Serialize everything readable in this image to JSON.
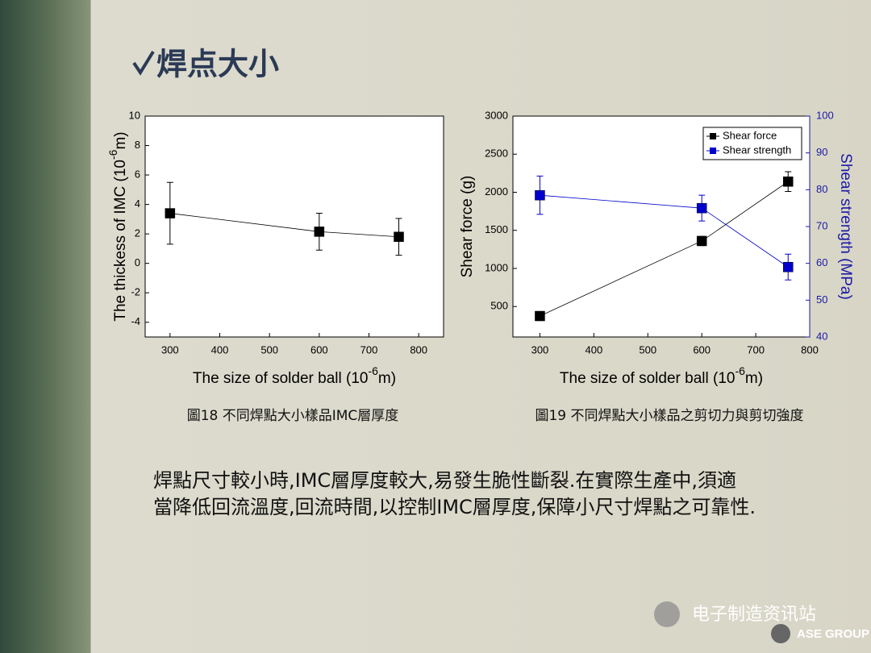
{
  "slide": {
    "title": "焊点大小",
    "captions": [
      "圖18 不同焊點大小樣品IMC層厚度",
      "圖19 不同焊點大小樣品之剪切力與剪切強度"
    ],
    "body": [
      "焊點尺寸較小時,IMC層厚度較大,易發生脆性斷裂.在實際生產中,須適",
      "當降低回流溫度,回流時間,以控制IMC層厚度,保障小尺寸焊點之可靠性."
    ],
    "watermark": "电子制造资讯站",
    "logo": "ASE GROUP"
  },
  "chart_data": [
    {
      "type": "line",
      "xlabel": [
        "The size of solder ball (10",
        "-6",
        "m)"
      ],
      "ylabel": [
        "The thickess of IMC (10",
        "-6",
        "m)"
      ],
      "x": [
        300,
        600,
        760
      ],
      "xlim": [
        250,
        850
      ],
      "xticks": [
        300,
        400,
        500,
        600,
        700,
        800
      ],
      "ylim": [
        -5,
        10
      ],
      "yticks": [
        -4,
        -2,
        0,
        2,
        4,
        6,
        8,
        10
      ],
      "grid": false,
      "series": [
        {
          "name": null,
          "color": "#000000",
          "values": [
            3.4,
            2.15,
            1.8
          ],
          "errors": [
            2.1,
            1.25,
            1.25
          ]
        }
      ]
    },
    {
      "type": "line",
      "xlabel": [
        "The size of solder ball (10",
        "-6",
        "m)"
      ],
      "ylabel": "Shear force (g)",
      "y2label": "Shear strength (MPa)",
      "y2color": "#1a1aa6",
      "x": [
        300,
        600,
        760
      ],
      "xlim": [
        250,
        800
      ],
      "xticks": [
        300,
        400,
        500,
        600,
        700,
        800
      ],
      "ylim": [
        100,
        3000
      ],
      "yticks": [
        500,
        1000,
        1500,
        2000,
        2500,
        3000
      ],
      "y2lim": [
        40,
        100
      ],
      "y2ticks": [
        40,
        50,
        60,
        70,
        80,
        90,
        100
      ],
      "grid": false,
      "legend": "upper right",
      "series": [
        {
          "name": "Shear force",
          "color": "#000000",
          "values": [
            375,
            1360,
            2140
          ],
          "errors": [
            20,
            60,
            130
          ]
        },
        {
          "name": "Shear strength",
          "color": "#0000cc",
          "axis": "y2",
          "values": [
            78.5,
            75,
            59
          ],
          "errors": [
            5.2,
            3.5,
            3.5
          ]
        }
      ]
    }
  ]
}
